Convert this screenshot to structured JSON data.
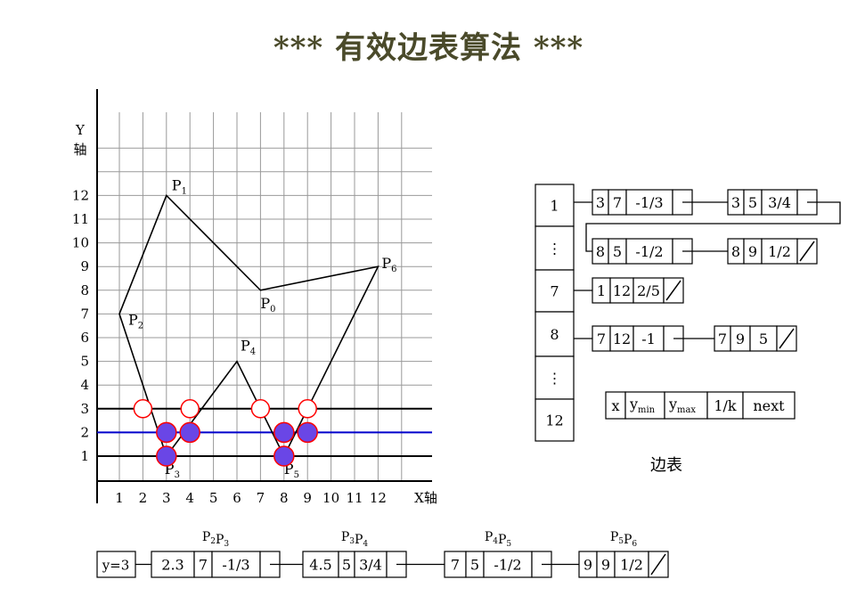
{
  "title": "*** 有效边表算法 ***",
  "colors": {
    "grid": "#999999",
    "line": "#000000",
    "scanline_active": "#0000cc",
    "intersection_fill": "#6a46e6",
    "intersection_stroke": "#ff0000",
    "title": "#4a4a2a"
  },
  "graph": {
    "y_axis_label": "Y\n轴",
    "x_axis_label": "X轴",
    "x_ticks": [
      "1",
      "2",
      "3",
      "4",
      "5",
      "6",
      "7",
      "8",
      "9",
      "10",
      "11",
      "12"
    ],
    "y_ticks": [
      "1",
      "2",
      "3",
      "4",
      "5",
      "6",
      "7",
      "8",
      "9",
      "10",
      "11",
      "12"
    ],
    "polygon": [
      {
        "label": "P1",
        "x": 3,
        "y": 12
      },
      {
        "label": "P0",
        "x": 7,
        "y": 8
      },
      {
        "label": "P6",
        "x": 12,
        "y": 9
      },
      {
        "label": "P5",
        "x": 8,
        "y": 1
      },
      {
        "label": "P4",
        "x": 6,
        "y": 5
      },
      {
        "label": "P3",
        "x": 3,
        "y": 1
      },
      {
        "label": "P2",
        "x": 1,
        "y": 7
      }
    ],
    "vertex_labels": [
      {
        "main": "P",
        "sub": "1",
        "x": 3,
        "y": 12
      },
      {
        "main": "P",
        "sub": "2",
        "x": 1,
        "y": 7
      },
      {
        "main": "P",
        "sub": "3",
        "x": 3,
        "y": 1
      },
      {
        "main": "P",
        "sub": "4",
        "x": 6,
        "y": 5
      },
      {
        "main": "P",
        "sub": "5",
        "x": 8,
        "y": 1
      },
      {
        "main": "P",
        "sub": "6",
        "x": 12,
        "y": 9
      },
      {
        "main": "P",
        "sub": "0",
        "x": 7,
        "y": 8
      }
    ],
    "scan_lines": [
      {
        "y": 1,
        "color": "black"
      },
      {
        "y": 2,
        "color": "blue"
      },
      {
        "y": 3,
        "color": "black"
      }
    ],
    "open_points": [
      {
        "x": 2,
        "y": 3
      },
      {
        "x": 4,
        "y": 3
      },
      {
        "x": 7,
        "y": 3
      },
      {
        "x": 9,
        "y": 3
      }
    ],
    "filled_points": [
      {
        "x": 3,
        "y": 2
      },
      {
        "x": 4,
        "y": 2
      },
      {
        "x": 8,
        "y": 2
      },
      {
        "x": 9,
        "y": 2
      },
      {
        "x": 3,
        "y": 1
      },
      {
        "x": 8,
        "y": 1
      }
    ]
  },
  "edge_table": {
    "caption": "边表",
    "buckets": [
      "1",
      "⋮",
      "7",
      "8",
      "⋮",
      "12"
    ],
    "row1a": [
      {
        "cells": [
          "3",
          "7",
          "-1/3"
        ],
        "end": "link"
      },
      {
        "cells": [
          "3",
          "5",
          "3/4"
        ],
        "end": "link"
      }
    ],
    "row1b": [
      {
        "cells": [
          "8",
          "5",
          "-1/2"
        ],
        "end": "link"
      },
      {
        "cells": [
          "8",
          "9",
          "1/2"
        ],
        "end": "null"
      }
    ],
    "row7": [
      {
        "cells": [
          "1",
          "12",
          "2/5"
        ],
        "end": "null"
      }
    ],
    "row8": [
      {
        "cells": [
          "7",
          "12",
          "-1"
        ],
        "end": "link"
      },
      {
        "cells": [
          "7",
          "9",
          "5"
        ],
        "end": "null"
      }
    ],
    "legend": {
      "x": "x",
      "ymin_main": "y",
      "ymin_sub": "min",
      "ymax_main": "y",
      "ymax_sub": "max",
      "inv_k": "1/k",
      "next": "next"
    }
  },
  "aet": {
    "head": "y=3",
    "nodes": [
      {
        "label_p1": "P",
        "label_s1": "2",
        "label_p2": "P",
        "label_s2": "3",
        "cells": [
          "2.3",
          "7",
          "-1/3"
        ],
        "end": "link"
      },
      {
        "label_p1": "P",
        "label_s1": "3",
        "label_p2": "P",
        "label_s2": "4",
        "cells": [
          "4.5",
          "5",
          "3/4"
        ],
        "end": "link"
      },
      {
        "label_p1": "P",
        "label_s1": "4",
        "label_p2": "P",
        "label_s2": "5",
        "cells": [
          "7",
          "5",
          "-1/2"
        ],
        "end": "link"
      },
      {
        "label_p1": "P",
        "label_s1": "5",
        "label_p2": "P",
        "label_s2": "6",
        "cells": [
          "9",
          "9",
          "1/2"
        ],
        "end": "null"
      }
    ]
  }
}
